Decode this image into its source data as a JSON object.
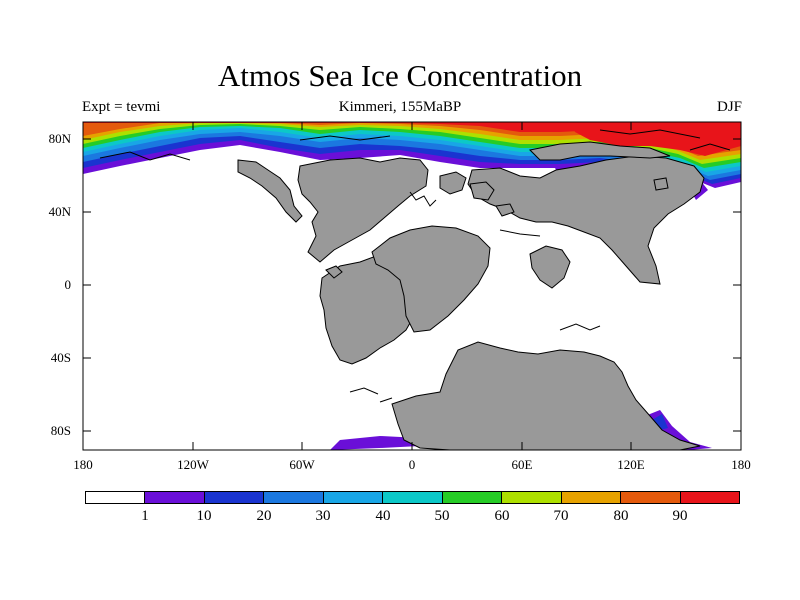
{
  "title": "Atmos Sea Ice Concentration",
  "subtitle_left": "Expt = tevmi",
  "subtitle_center": "Kimmeri, 155MaBP",
  "subtitle_right": "DJF",
  "y_axis_labels": [
    "80N",
    "40N",
    "0",
    "40S",
    "80S"
  ],
  "x_axis_labels": [
    "180",
    "120W",
    "60W",
    "0",
    "60E",
    "120E",
    "180"
  ],
  "colorbar": {
    "labels": [
      "1",
      "10",
      "20",
      "30",
      "40",
      "50",
      "60",
      "70",
      "80",
      "90"
    ],
    "colors": [
      "#ffffff",
      "#6a0fd8",
      "#1a34d0",
      "#1b78e0",
      "#19a6e6",
      "#0cc8c8",
      "#26cc26",
      "#aee000",
      "#e6a200",
      "#e45a0c",
      "#e8141a"
    ]
  },
  "colors": {
    "land": "#999999",
    "coast": "#000000"
  }
}
